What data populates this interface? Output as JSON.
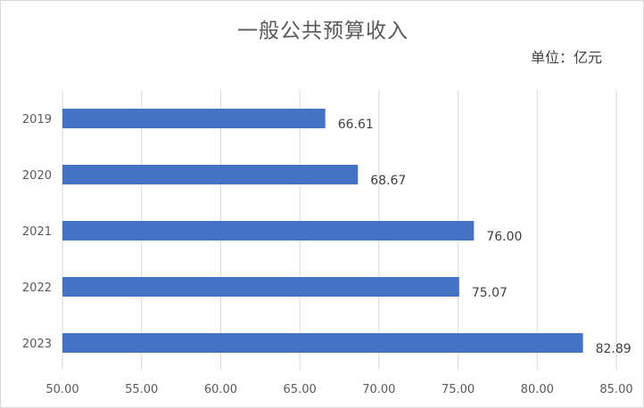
{
  "chart_data": {
    "type": "bar",
    "orientation": "horizontal",
    "title": "一般公共预算收入",
    "unit": "单位：亿元",
    "categories": [
      "2019",
      "2020",
      "2021",
      "2022",
      "2023"
    ],
    "values": [
      66.61,
      68.67,
      76.0,
      75.07,
      82.89
    ],
    "value_labels": [
      "66.61",
      "68.67",
      "76.00",
      "75.07",
      "82.89"
    ],
    "xlim": [
      50,
      85
    ],
    "x_ticks": [
      50,
      55,
      60,
      65,
      70,
      75,
      80,
      85
    ],
    "x_tick_labels": [
      "50.00",
      "55.00",
      "60.00",
      "65.00",
      "70.00",
      "75.00",
      "80.00",
      "85.00"
    ],
    "grid": "vertical",
    "legend": "none",
    "colors": {
      "bar": "#4472C4",
      "grid": "#d9d9d9"
    }
  }
}
